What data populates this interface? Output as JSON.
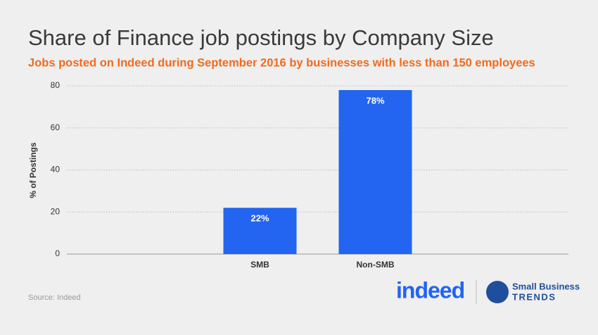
{
  "chart_data": {
    "type": "bar",
    "title": "Share of Finance job postings by Company Size",
    "subtitle": "Jobs posted on Indeed during September 2016 by businesses with less than 150 employees",
    "y_label": "% of Postings",
    "categories": [
      "SMB",
      "Non-SMB"
    ],
    "values": [
      22,
      78
    ],
    "value_labels": [
      "22%",
      "78%"
    ],
    "color": "#2364f0",
    "ylim": [
      0,
      80
    ],
    "yticks": [
      0,
      20,
      40,
      60,
      80
    ],
    "grid": true
  },
  "footer": {
    "source": "Source: Indeed",
    "logo_indeed": "indeed",
    "logo_sbt_top": "Small Business",
    "logo_sbt_bottom": "TRENDS"
  }
}
